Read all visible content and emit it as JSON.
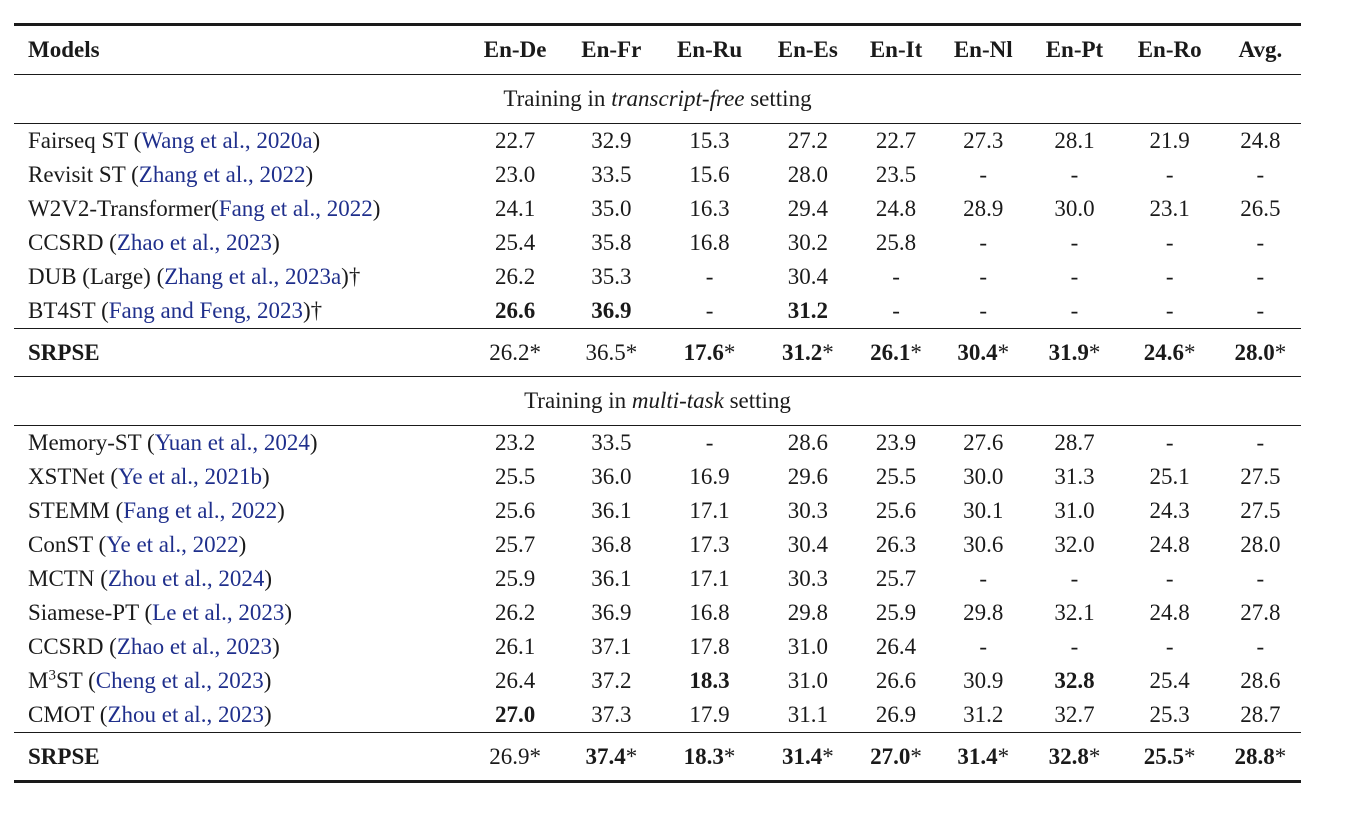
{
  "header": [
    "Models",
    "En-De",
    "En-Fr",
    "En-Ru",
    "En-Es",
    "En-It",
    "En-Nl",
    "En-Pt",
    "En-Ro",
    "Avg."
  ],
  "sections": [
    {
      "title": {
        "before": "Training in ",
        "italic": "transcript-free",
        "after": " setting"
      },
      "rows": [
        {
          "name": "Fairseq ST (",
          "cite": "Wang et al., 2020a",
          "suffix": ")",
          "vals": [
            "22.7",
            "32.9",
            "15.3",
            "27.2",
            "22.7",
            "27.3",
            "28.1",
            "21.9",
            "24.8"
          ],
          "bold": []
        },
        {
          "name": "Revisit ST (",
          "cite": "Zhang et al., 2022",
          "suffix": ")",
          "vals": [
            "23.0",
            "33.5",
            "15.6",
            "28.0",
            "23.5",
            "-",
            "-",
            "-",
            "-"
          ],
          "bold": []
        },
        {
          "name": "W2V2-Transformer(",
          "cite": "Fang et al., 2022",
          "suffix": ")",
          "vals": [
            "24.1",
            "35.0",
            "16.3",
            "29.4",
            "24.8",
            "28.9",
            "30.0",
            "23.1",
            "26.5"
          ],
          "bold": []
        },
        {
          "name": "CCSRD (",
          "cite": "Zhao et al., 2023",
          "suffix": ")",
          "vals": [
            "25.4",
            "35.8",
            "16.8",
            "30.2",
            "25.8",
            "-",
            "-",
            "-",
            "-"
          ],
          "bold": []
        },
        {
          "name": "DUB (Large) (",
          "cite": "Zhang et al., 2023a",
          "suffix": ")†",
          "vals": [
            "26.2",
            "35.3",
            "-",
            "30.4",
            "-",
            "-",
            "-",
            "-",
            "-"
          ],
          "bold": []
        },
        {
          "name": "BT4ST (",
          "cite": "Fang and Feng, 2023",
          "suffix": ")†",
          "vals": [
            "26.6",
            "36.9",
            "-",
            "31.2",
            "-",
            "-",
            "-",
            "-",
            "-"
          ],
          "bold": [
            0,
            1,
            3
          ]
        }
      ],
      "ours": {
        "name": "SRPSE",
        "vals": [
          "26.2",
          "36.5",
          "17.6",
          "31.2",
          "26.1",
          "30.4",
          "31.9",
          "24.6",
          "28.0"
        ],
        "mark": "*",
        "bold": [
          2,
          3,
          4,
          5,
          6,
          7,
          8
        ]
      }
    },
    {
      "title": {
        "before": "Training in ",
        "italic": "multi-task",
        "after": " setting"
      },
      "rows": [
        {
          "name": "Memory-ST (",
          "cite": "Yuan et al., 2024",
          "suffix": ")",
          "vals": [
            "23.2",
            "33.5",
            "-",
            "28.6",
            "23.9",
            "27.6",
            "28.7",
            "-",
            "-"
          ],
          "bold": []
        },
        {
          "name": "XSTNet (",
          "cite": "Ye et al., 2021b",
          "suffix": ")",
          "vals": [
            "25.5",
            "36.0",
            "16.9",
            "29.6",
            "25.5",
            "30.0",
            "31.3",
            "25.1",
            "27.5"
          ],
          "bold": []
        },
        {
          "name": "STEMM (",
          "cite": "Fang et al., 2022",
          "suffix": ")",
          "vals": [
            "25.6",
            "36.1",
            "17.1",
            "30.3",
            "25.6",
            "30.1",
            "31.0",
            "24.3",
            "27.5"
          ],
          "bold": []
        },
        {
          "name": "ConST (",
          "cite": "Ye et al., 2022",
          "suffix": ")",
          "vals": [
            "25.7",
            "36.8",
            "17.3",
            "30.4",
            "26.3",
            "30.6",
            "32.0",
            "24.8",
            "28.0"
          ],
          "bold": []
        },
        {
          "name": "MCTN (",
          "cite": "Zhou et al., 2024",
          "suffix": ")",
          "vals": [
            "25.9",
            "36.1",
            "17.1",
            "30.3",
            "25.7",
            "-",
            "-",
            "-",
            "-"
          ],
          "bold": []
        },
        {
          "name": "Siamese-PT (",
          "cite": "Le et al., 2023",
          "suffix": ")",
          "vals": [
            "26.2",
            "36.9",
            "16.8",
            "29.8",
            "25.9",
            "29.8",
            "32.1",
            "24.8",
            "27.8"
          ],
          "bold": []
        },
        {
          "name": "CCSRD (",
          "cite": "Zhao et al., 2023",
          "suffix": ")",
          "vals": [
            "26.1",
            "37.1",
            "17.8",
            "31.0",
            "26.4",
            "-",
            "-",
            "-",
            "-"
          ],
          "bold": []
        },
        {
          "name": "M",
          "sup": "3",
          "name2": "ST (",
          "cite": "Cheng et al., 2023",
          "suffix": ")",
          "vals": [
            "26.4",
            "37.2",
            "18.3",
            "31.0",
            "26.6",
            "30.9",
            "32.8",
            "25.4",
            "28.6"
          ],
          "bold": [
            2,
            6
          ]
        },
        {
          "name": "CMOT (",
          "cite": "Zhou et al., 2023",
          "suffix": ")",
          "vals": [
            "27.0",
            "37.3",
            "17.9",
            "31.1",
            "26.9",
            "31.2",
            "32.7",
            "25.3",
            "28.7"
          ],
          "bold": [
            0
          ]
        }
      ],
      "ours": {
        "name": "SRPSE",
        "vals": [
          "26.9",
          "37.4",
          "18.3",
          "31.4",
          "27.0",
          "31.4",
          "32.8",
          "25.5",
          "28.8"
        ],
        "mark": "*",
        "bold": [
          1,
          2,
          3,
          4,
          5,
          6,
          7,
          8
        ]
      }
    }
  ]
}
